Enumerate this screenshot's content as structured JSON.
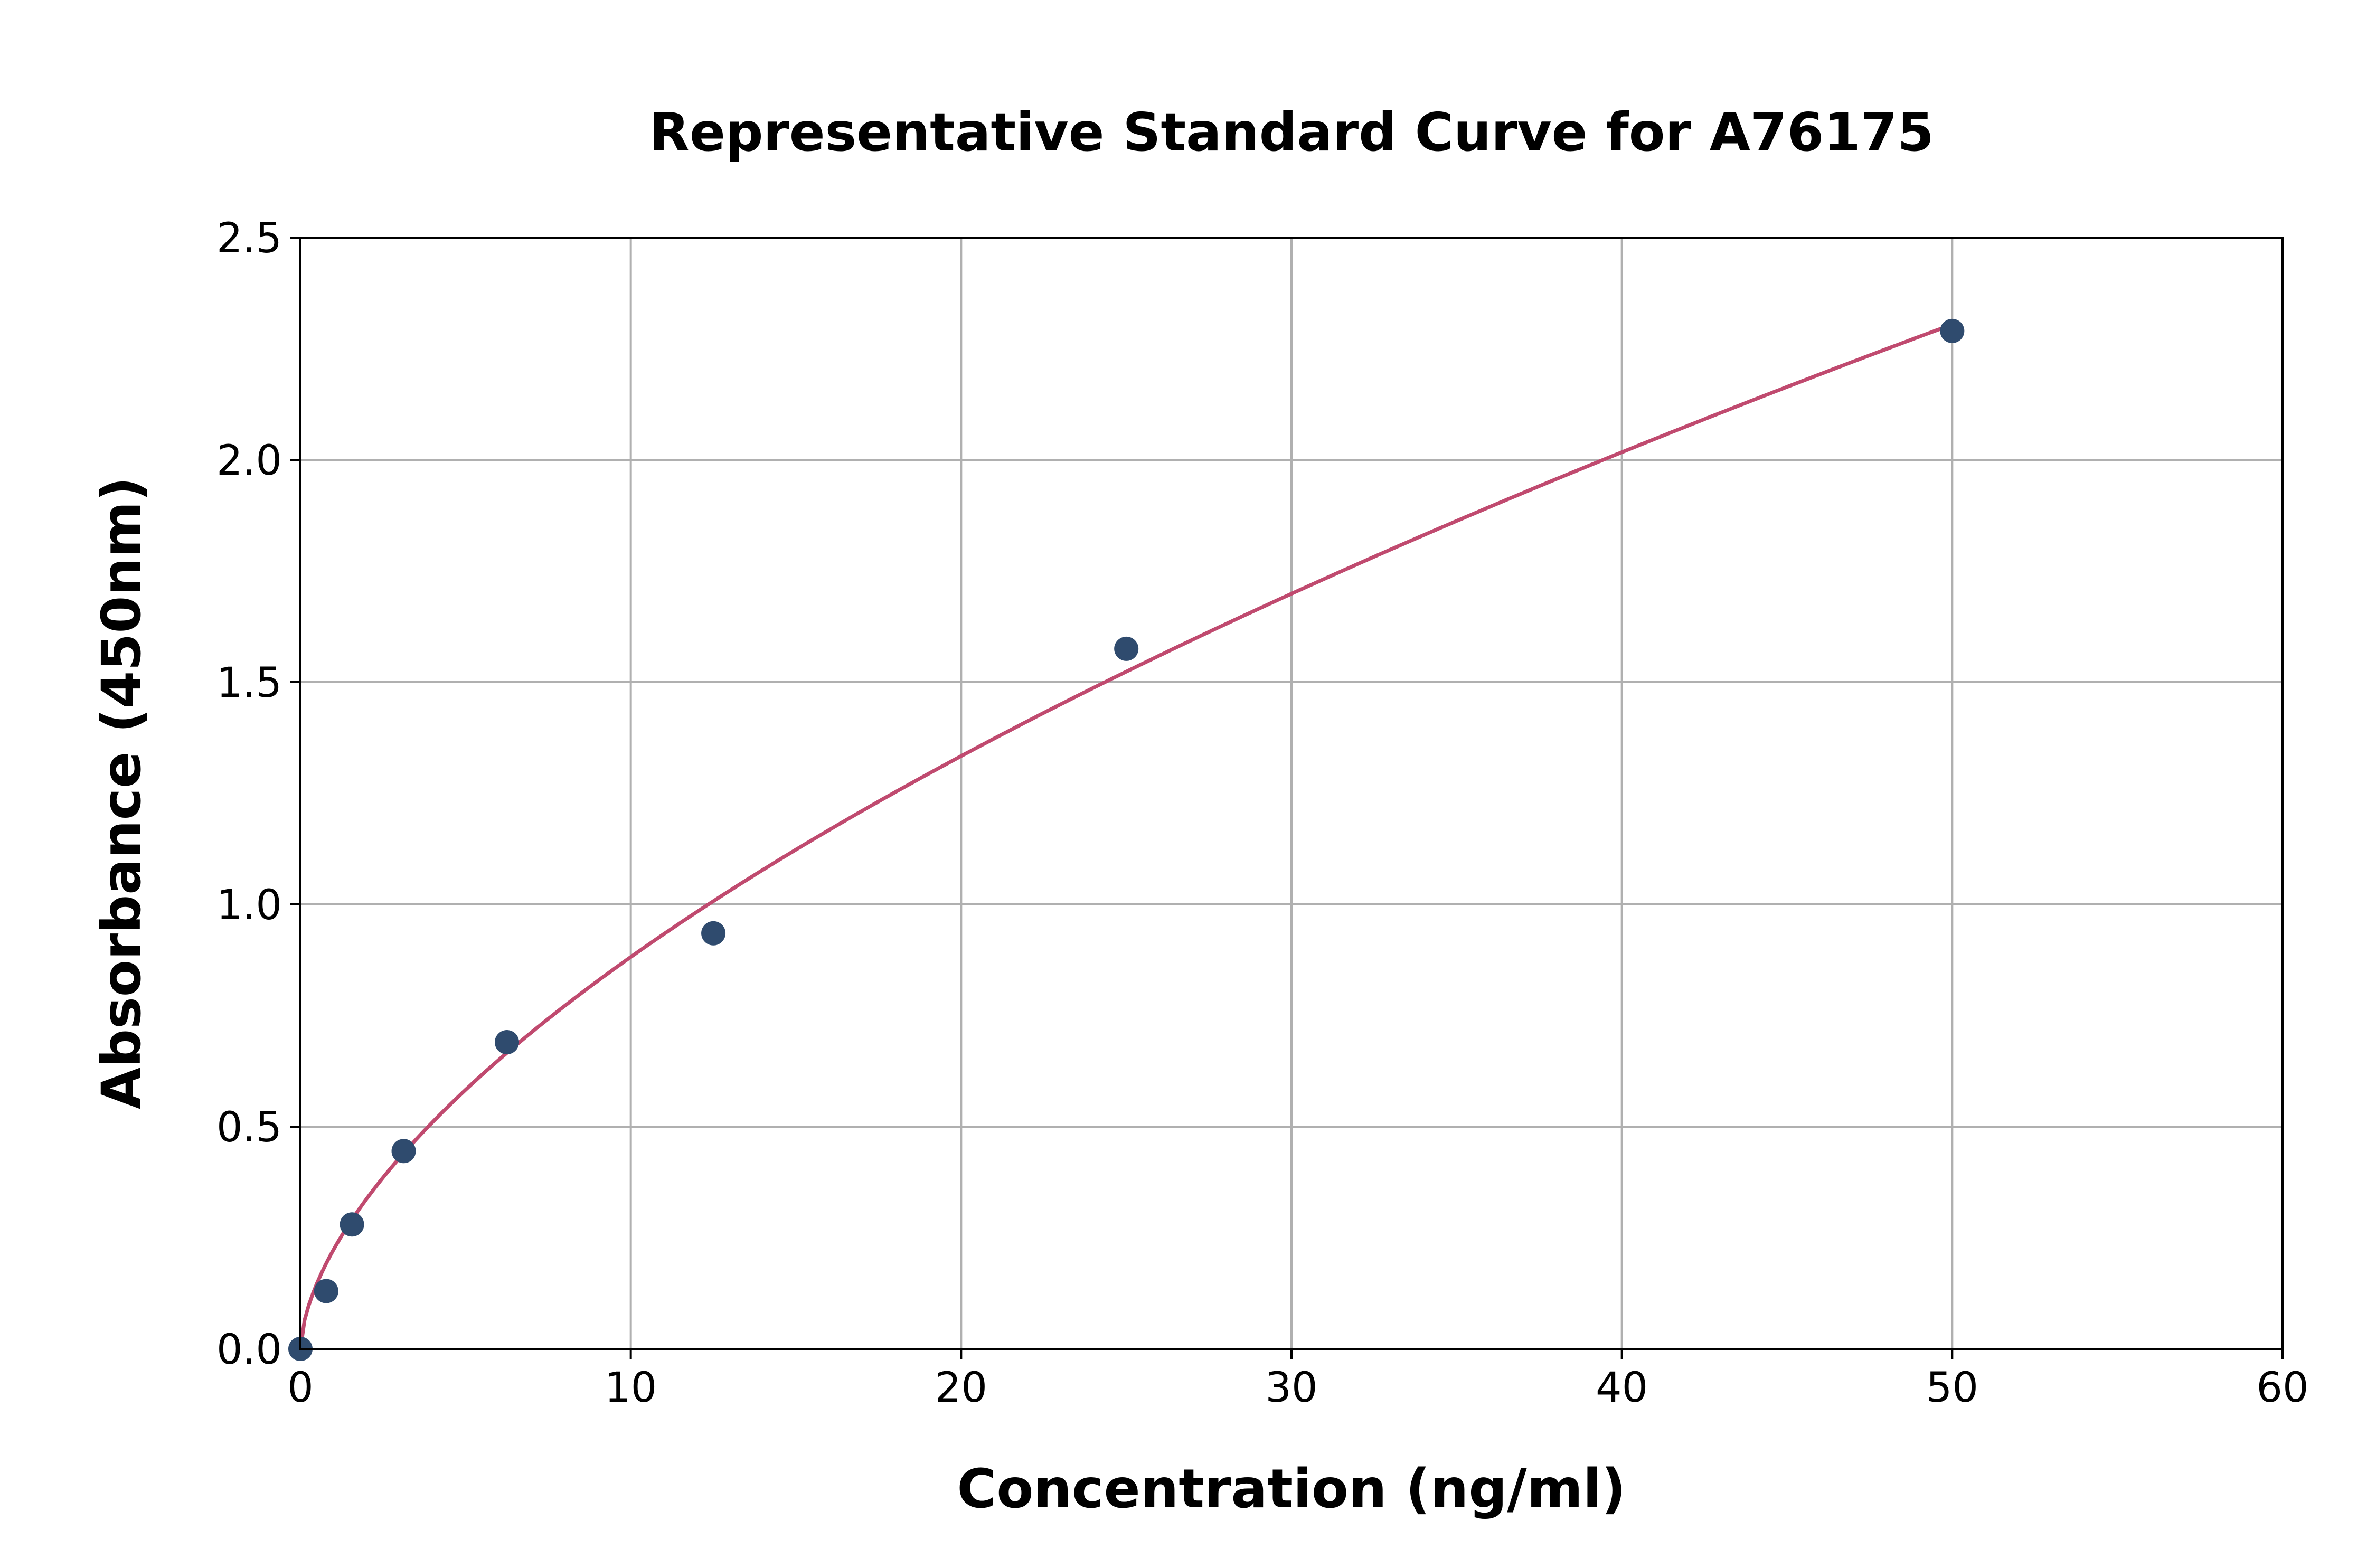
{
  "chart_data": {
    "type": "scatter",
    "title": "Representative Standard Curve for A76175",
    "xlabel": "Concentration (ng/ml)",
    "ylabel": "Absorbance (450nm)",
    "xlim": [
      0,
      60
    ],
    "ylim": [
      0,
      2.5
    ],
    "xticks": [
      "0",
      "10",
      "20",
      "30",
      "40",
      "50",
      "60"
    ],
    "yticks": [
      "0.0",
      "0.5",
      "1.0",
      "1.5",
      "2.0",
      "2.5"
    ],
    "grid": true,
    "points": {
      "x": [
        0,
        0.78,
        1.56,
        3.125,
        6.25,
        12.5,
        25,
        50
      ],
      "y": [
        0,
        0.13,
        0.28,
        0.445,
        0.69,
        0.935,
        1.575,
        2.29
      ]
    },
    "fit_curve": {
      "model": "power",
      "a": 0.223,
      "b": 0.597,
      "x_range": [
        0,
        50
      ]
    },
    "colors": {
      "points": "#2f4b6e",
      "curve": "#c04a6f"
    }
  }
}
